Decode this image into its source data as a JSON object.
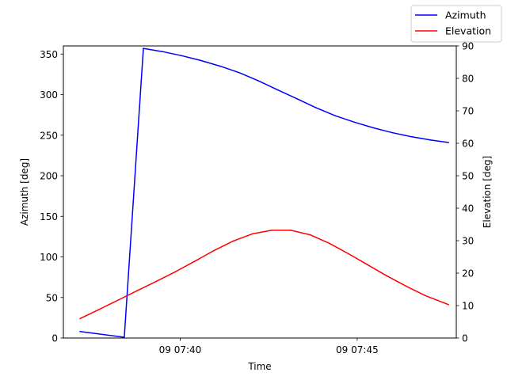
{
  "chart_data": {
    "type": "line",
    "title": "",
    "xlabel": "Time",
    "ylabel_left": "Azimuth [deg]",
    "ylabel_right": "Elevation [deg]",
    "x_unit": "minutes after 07:36 (day 09)",
    "xlim": [
      36.7,
      47.8
    ],
    "ylim_left": [
      0,
      360
    ],
    "ylim_right": [
      0,
      90
    ],
    "x_ticks": [
      {
        "value": 40,
        "label": "09 07:40"
      },
      {
        "value": 45,
        "label": "09 07:45"
      }
    ],
    "y_ticks_left": [
      0,
      50,
      100,
      150,
      200,
      250,
      300,
      350
    ],
    "y_ticks_right": [
      0,
      10,
      20,
      30,
      40,
      50,
      60,
      70,
      80,
      90
    ],
    "legend_position": "top-right",
    "grid": false,
    "series": [
      {
        "name": "Azimuth",
        "axis": "left",
        "color": "#0000ff",
        "x": [
          37.17,
          38.42,
          38.96,
          39.5,
          40.04,
          40.58,
          41.13,
          41.67,
          42.21,
          42.75,
          43.29,
          43.83,
          44.38,
          44.92,
          45.46,
          46.0,
          46.54,
          47.08,
          47.58
        ],
        "y": [
          8,
          1,
          357,
          353,
          348,
          342,
          335,
          327,
          317,
          306,
          295,
          284,
          274,
          266,
          259,
          253,
          248,
          244,
          241
        ]
      },
      {
        "name": "Elevation",
        "axis": "right",
        "color": "#ff0000",
        "x": [
          37.17,
          37.71,
          38.25,
          38.79,
          39.33,
          39.88,
          40.42,
          40.96,
          41.5,
          42.04,
          42.58,
          43.13,
          43.67,
          44.21,
          44.75,
          45.29,
          45.83,
          46.38,
          46.92,
          47.58
        ],
        "y": [
          6,
          8.8,
          11.7,
          14.6,
          17.5,
          20.5,
          23.7,
          27,
          29.9,
          32.1,
          33.2,
          33.2,
          31.8,
          29.2,
          26,
          22.6,
          19.2,
          16,
          13.1,
          10.3
        ]
      }
    ]
  }
}
